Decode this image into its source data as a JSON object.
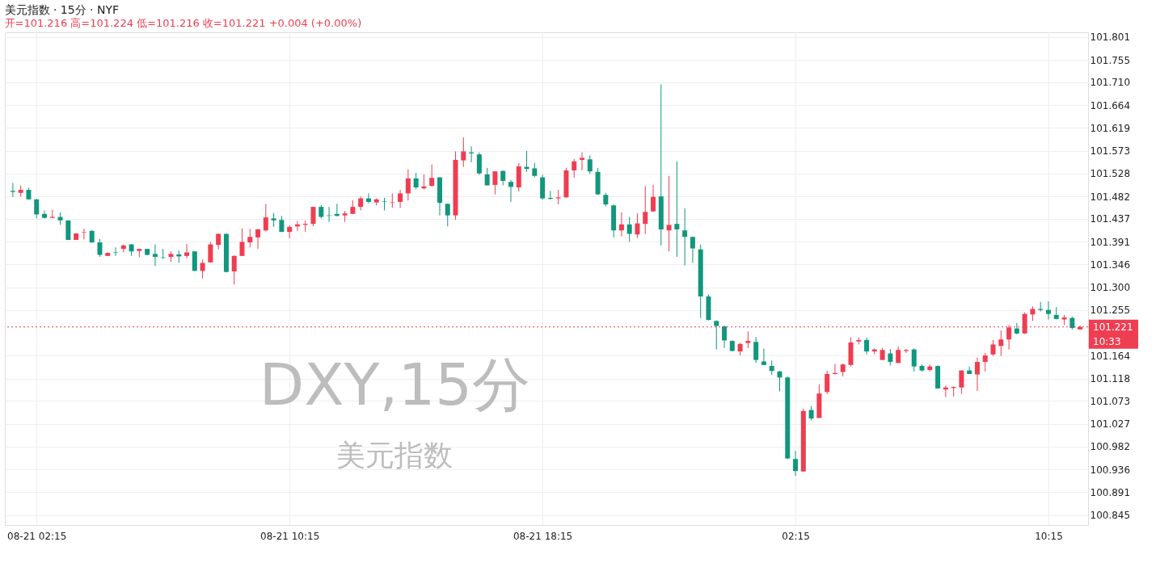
{
  "chart_data": {
    "type": "candlestick",
    "title": "美元指数 · 15分 · NYF",
    "subtitle": "开=101.216 高=101.224 低=101.216 收=101.221 +0.004 (+0.00%)",
    "categories": [
      null,
      null,
      null,
      "08-21 02:15",
      null,
      null,
      null,
      null,
      null,
      null,
      null,
      null,
      null,
      null,
      null,
      null,
      null,
      null,
      null,
      null,
      null,
      null,
      null,
      null,
      null,
      null,
      null,
      null,
      null,
      null,
      null,
      null,
      null,
      null,
      null,
      "08-21 10:15",
      null,
      null,
      null,
      null,
      null,
      null,
      null,
      null,
      null,
      null,
      null,
      null,
      null,
      null,
      null,
      null,
      null,
      null,
      null,
      null,
      null,
      null,
      null,
      null,
      null,
      null,
      null,
      null,
      null,
      null,
      null,
      "08-21 18:15",
      null,
      null,
      null,
      null,
      null,
      null,
      null,
      null,
      null,
      null,
      null,
      null,
      null,
      null,
      null,
      null,
      null,
      null,
      null,
      null,
      null,
      null,
      null,
      null,
      null,
      null,
      null,
      null,
      null,
      null,
      null,
      "02:15",
      null,
      null,
      null,
      null,
      null,
      null,
      null,
      null,
      null,
      null,
      null,
      null,
      null,
      null,
      null,
      null,
      null,
      null,
      null,
      null,
      null,
      null,
      null,
      null,
      null,
      null,
      null,
      null,
      null,
      null,
      null,
      "10:15",
      null,
      null,
      null,
      null
    ],
    "ohlc": [
      [
        101.493,
        101.509,
        101.481,
        101.491
      ],
      [
        101.489,
        101.504,
        101.481,
        101.495
      ],
      [
        101.495,
        101.499,
        101.476,
        101.476
      ],
      [
        101.476,
        101.477,
        101.438,
        101.446
      ],
      [
        101.447,
        101.454,
        101.438,
        101.439
      ],
      [
        101.439,
        101.455,
        101.439,
        101.441
      ],
      [
        101.441,
        101.45,
        101.425,
        101.434
      ],
      [
        101.434,
        101.434,
        101.395,
        101.395
      ],
      [
        101.395,
        101.408,
        101.395,
        101.408
      ],
      [
        101.41,
        101.417,
        101.396,
        101.411
      ],
      [
        101.413,
        101.415,
        101.389,
        101.39
      ],
      [
        101.39,
        101.397,
        101.361,
        101.365
      ],
      [
        101.363,
        101.37,
        101.363,
        101.369
      ],
      [
        101.37,
        101.38,
        101.363,
        101.369
      ],
      [
        101.377,
        101.386,
        101.37,
        101.384
      ],
      [
        101.386,
        101.387,
        101.363,
        101.372
      ],
      [
        101.373,
        101.377,
        101.36,
        101.377
      ],
      [
        101.377,
        101.377,
        101.364,
        101.365
      ],
      [
        101.367,
        101.386,
        101.343,
        101.361
      ],
      [
        101.36,
        101.377,
        101.357,
        101.359
      ],
      [
        101.361,
        101.372,
        101.351,
        101.367
      ],
      [
        101.366,
        101.374,
        101.349,
        101.362
      ],
      [
        101.363,
        101.387,
        101.358,
        101.37
      ],
      [
        101.372,
        101.373,
        101.333,
        101.333
      ],
      [
        101.333,
        101.356,
        101.318,
        101.349
      ],
      [
        101.35,
        101.391,
        101.35,
        101.386
      ],
      [
        101.385,
        101.408,
        101.376,
        101.407
      ],
      [
        101.407,
        101.408,
        101.33,
        101.331
      ],
      [
        101.332,
        101.364,
        101.306,
        101.363
      ],
      [
        101.363,
        101.418,
        101.363,
        101.391
      ],
      [
        101.39,
        101.417,
        101.38,
        101.401
      ],
      [
        101.4,
        101.417,
        101.377,
        101.416
      ],
      [
        101.414,
        101.467,
        101.412,
        101.44
      ],
      [
        101.438,
        101.449,
        101.421,
        101.434
      ],
      [
        101.435,
        101.443,
        101.411,
        101.411
      ],
      [
        101.411,
        101.424,
        101.398,
        101.421
      ],
      [
        101.422,
        101.433,
        101.413,
        101.426
      ],
      [
        101.425,
        101.434,
        101.411,
        101.427
      ],
      [
        101.427,
        101.461,
        101.422,
        101.461
      ],
      [
        101.461,
        101.465,
        101.438,
        101.441
      ],
      [
        101.444,
        101.461,
        101.431,
        101.443
      ],
      [
        101.447,
        101.467,
        101.442,
        101.443
      ],
      [
        101.444,
        101.453,
        101.431,
        101.448
      ],
      [
        101.447,
        101.474,
        101.447,
        101.461
      ],
      [
        101.461,
        101.482,
        101.454,
        101.478
      ],
      [
        101.478,
        101.488,
        101.468,
        101.471
      ],
      [
        101.47,
        101.478,
        101.464,
        101.476
      ],
      [
        101.472,
        101.479,
        101.454,
        101.471
      ],
      [
        101.469,
        101.488,
        101.459,
        101.47
      ],
      [
        101.471,
        101.495,
        101.459,
        101.488
      ],
      [
        101.488,
        101.536,
        101.474,
        101.518
      ],
      [
        101.518,
        101.529,
        101.496,
        101.5
      ],
      [
        101.498,
        101.526,
        101.496,
        101.502
      ],
      [
        101.503,
        101.546,
        101.501,
        101.519
      ],
      [
        101.52,
        101.521,
        101.444,
        101.469
      ],
      [
        101.467,
        101.468,
        101.422,
        101.444
      ],
      [
        101.444,
        101.572,
        101.435,
        101.555
      ],
      [
        101.554,
        101.6,
        101.541,
        101.572
      ],
      [
        101.57,
        101.582,
        101.55,
        101.568
      ],
      [
        101.566,
        101.57,
        101.525,
        101.528
      ],
      [
        101.526,
        101.539,
        101.504,
        101.504
      ],
      [
        101.505,
        101.532,
        101.486,
        101.532
      ],
      [
        101.533,
        101.533,
        101.504,
        101.513
      ],
      [
        101.511,
        101.515,
        101.471,
        101.501
      ],
      [
        101.5,
        101.549,
        101.492,
        101.542
      ],
      [
        101.541,
        101.573,
        101.531,
        101.537
      ],
      [
        101.538,
        101.549,
        101.52,
        101.523
      ],
      [
        101.52,
        101.525,
        101.475,
        101.478
      ],
      [
        101.479,
        101.493,
        101.476,
        101.477
      ],
      [
        101.478,
        101.495,
        101.466,
        101.48
      ],
      [
        101.48,
        101.539,
        101.48,
        101.534
      ],
      [
        101.534,
        101.557,
        101.519,
        101.552
      ],
      [
        101.555,
        101.57,
        101.534,
        101.559
      ],
      [
        101.556,
        101.564,
        101.527,
        101.532
      ],
      [
        101.531,
        101.539,
        101.485,
        101.486
      ],
      [
        101.485,
        101.489,
        101.462,
        101.466
      ],
      [
        101.464,
        101.466,
        101.4,
        101.414
      ],
      [
        101.414,
        101.45,
        101.402,
        101.426
      ],
      [
        101.426,
        101.441,
        101.391,
        101.407
      ],
      [
        101.406,
        101.448,
        101.399,
        101.428
      ],
      [
        101.427,
        101.503,
        101.407,
        101.451
      ],
      [
        101.452,
        101.505,
        101.451,
        101.481
      ],
      [
        101.482,
        101.706,
        101.384,
        101.416
      ],
      [
        101.414,
        101.523,
        101.372,
        101.425
      ],
      [
        101.427,
        101.552,
        101.361,
        101.416
      ],
      [
        101.414,
        101.458,
        101.344,
        101.401
      ],
      [
        101.401,
        101.401,
        101.349,
        101.378
      ],
      [
        101.376,
        101.386,
        101.239,
        101.282
      ],
      [
        101.282,
        101.286,
        101.234,
        101.235
      ],
      [
        101.233,
        101.234,
        101.176,
        101.223
      ],
      [
        101.222,
        101.224,
        101.179,
        101.194
      ],
      [
        101.193,
        101.194,
        101.172,
        101.173
      ],
      [
        101.172,
        101.189,
        101.164,
        101.187
      ],
      [
        101.189,
        101.212,
        101.179,
        101.193
      ],
      [
        101.191,
        101.201,
        101.149,
        101.155
      ],
      [
        101.152,
        101.178,
        101.145,
        101.145
      ],
      [
        101.143,
        101.154,
        101.125,
        101.133
      ],
      [
        101.132,
        101.133,
        101.092,
        101.12
      ],
      [
        101.12,
        101.122,
        100.957,
        100.958
      ],
      [
        100.957,
        100.973,
        100.923,
        100.933
      ],
      [
        100.932,
        101.058,
        100.932,
        101.053
      ],
      [
        101.055,
        101.063,
        101.034,
        101.038
      ],
      [
        101.039,
        101.106,
        101.039,
        101.088
      ],
      [
        101.091,
        101.134,
        101.087,
        101.127
      ],
      [
        101.127,
        101.147,
        101.126,
        101.129
      ],
      [
        101.131,
        101.148,
        101.122,
        101.146
      ],
      [
        101.145,
        101.2,
        101.142,
        101.19
      ],
      [
        101.192,
        101.2,
        101.186,
        101.195
      ],
      [
        101.195,
        101.2,
        101.166,
        101.172
      ],
      [
        101.172,
        101.178,
        101.166,
        101.176
      ],
      [
        101.155,
        101.179,
        101.155,
        101.175
      ],
      [
        101.168,
        101.177,
        101.144,
        101.151
      ],
      [
        101.149,
        101.182,
        101.149,
        101.175
      ],
      [
        101.173,
        101.177,
        101.169,
        101.175
      ],
      [
        101.176,
        101.178,
        101.132,
        101.142
      ],
      [
        101.143,
        101.146,
        101.132,
        101.134
      ],
      [
        101.135,
        101.146,
        101.132,
        101.142
      ],
      [
        101.143,
        101.144,
        101.098,
        101.098
      ],
      [
        101.096,
        101.104,
        101.081,
        101.1
      ],
      [
        101.099,
        101.102,
        101.082,
        101.101
      ],
      [
        101.1,
        101.134,
        101.087,
        101.134
      ],
      [
        101.134,
        101.142,
        101.127,
        101.127
      ],
      [
        101.126,
        101.16,
        101.093,
        101.151
      ],
      [
        101.151,
        101.169,
        101.132,
        101.164
      ],
      [
        101.166,
        101.195,
        101.163,
        101.186
      ],
      [
        101.183,
        101.214,
        101.163,
        101.196
      ],
      [
        101.196,
        101.225,
        101.176,
        101.22
      ],
      [
        101.218,
        101.229,
        101.206,
        101.208
      ],
      [
        101.208,
        101.25,
        101.207,
        101.247
      ],
      [
        101.246,
        101.262,
        101.233,
        101.257
      ],
      [
        101.257,
        101.271,
        101.252,
        101.255
      ],
      [
        101.255,
        101.272,
        101.236,
        101.247
      ],
      [
        101.245,
        101.261,
        101.236,
        101.237
      ],
      [
        101.236,
        101.245,
        101.225,
        101.24
      ],
      [
        101.239,
        101.242,
        101.216,
        101.219
      ],
      [
        101.216,
        101.224,
        101.216,
        101.221
      ]
    ],
    "colors": [
      "#11977d",
      "#ef3d52",
      "#11977d",
      "#11977d",
      "#11977d",
      "#ef3d52",
      "#11977d",
      "#11977d",
      "#ef3d52",
      "#ef3d52",
      "#11977d",
      "#11977d",
      "#ef3d52",
      "#11977d",
      "#ef3d52",
      "#11977d",
      "#ef3d52",
      "#11977d",
      "#11977d",
      "#11977d",
      "#ef3d52",
      "#11977d",
      "#ef3d52",
      "#11977d",
      "#ef3d52",
      "#ef3d52",
      "#ef3d52",
      "#11977d",
      "#ef3d52",
      "#ef3d52",
      "#ef3d52",
      "#ef3d52",
      "#ef3d52",
      "#11977d",
      "#11977d",
      "#ef3d52",
      "#ef3d52",
      "#ef3d52",
      "#ef3d52",
      "#11977d",
      "#11977d",
      "#11977d",
      "#ef3d52",
      "#ef3d52",
      "#ef3d52",
      "#11977d",
      "#ef3d52",
      "#11977d",
      "#ef3d52",
      "#ef3d52",
      "#ef3d52",
      "#11977d",
      "#ef3d52",
      "#ef3d52",
      "#11977d",
      "#11977d",
      "#ef3d52",
      "#ef3d52",
      "#11977d",
      "#11977d",
      "#11977d",
      "#ef3d52",
      "#11977d",
      "#11977d",
      "#ef3d52",
      "#11977d",
      "#11977d",
      "#11977d",
      "#11977d",
      "#ef3d52",
      "#ef3d52",
      "#ef3d52",
      "#ef3d52",
      "#11977d",
      "#11977d",
      "#11977d",
      "#11977d",
      "#ef3d52",
      "#11977d",
      "#ef3d52",
      "#ef3d52",
      "#ef3d52",
      "#11977d",
      "#ef3d52",
      "#11977d",
      "#11977d",
      "#11977d",
      "#11977d",
      "#11977d",
      "#11977d",
      "#11977d",
      "#11977d",
      "#ef3d52",
      "#ef3d52",
      "#11977d",
      "#11977d",
      "#11977d",
      "#11977d",
      "#11977d",
      "#11977d",
      "#ef3d52",
      "#11977d",
      "#ef3d52",
      "#ef3d52",
      "#ef3d52",
      "#ef3d52",
      "#ef3d52",
      "#ef3d52",
      "#11977d",
      "#ef3d52",
      "#ef3d52",
      "#11977d",
      "#ef3d52",
      "#ef3d52",
      "#11977d",
      "#11977d",
      "#ef3d52",
      "#11977d",
      "#ef3d52",
      "#ef3d52",
      "#ef3d52",
      "#11977d",
      "#ef3d52",
      "#ef3d52",
      "#ef3d52",
      "#ef3d52",
      "#ef3d52",
      "#11977d",
      "#ef3d52",
      "#ef3d52",
      "#11977d",
      "#11977d",
      "#11977d",
      "#ef3d52",
      "#11977d",
      "#ef3d52"
    ],
    "ylim": [
      100.825,
      101.81
    ],
    "yticks": [
      100.845,
      100.891,
      100.936,
      100.982,
      101.027,
      101.073,
      101.118,
      101.164,
      101.255,
      {
        "value": 101.3,
        "label": "101.300"
      },
      101.346,
      101.391,
      101.437,
      101.482,
      101.528,
      101.573,
      101.619,
      101.664,
      {
        "value": 101.71,
        "label": "101.710"
      },
      101.755,
      101.801
    ],
    "ref_lines": [
      {
        "axis": "y",
        "value": 101.221,
        "label": "101.221",
        "color": "#ef3d52",
        "line_style": "dotted"
      }
    ],
    "annotations": [
      "DXY,15分",
      "美元指数",
      "10:33"
    ],
    "grid": true
  }
}
